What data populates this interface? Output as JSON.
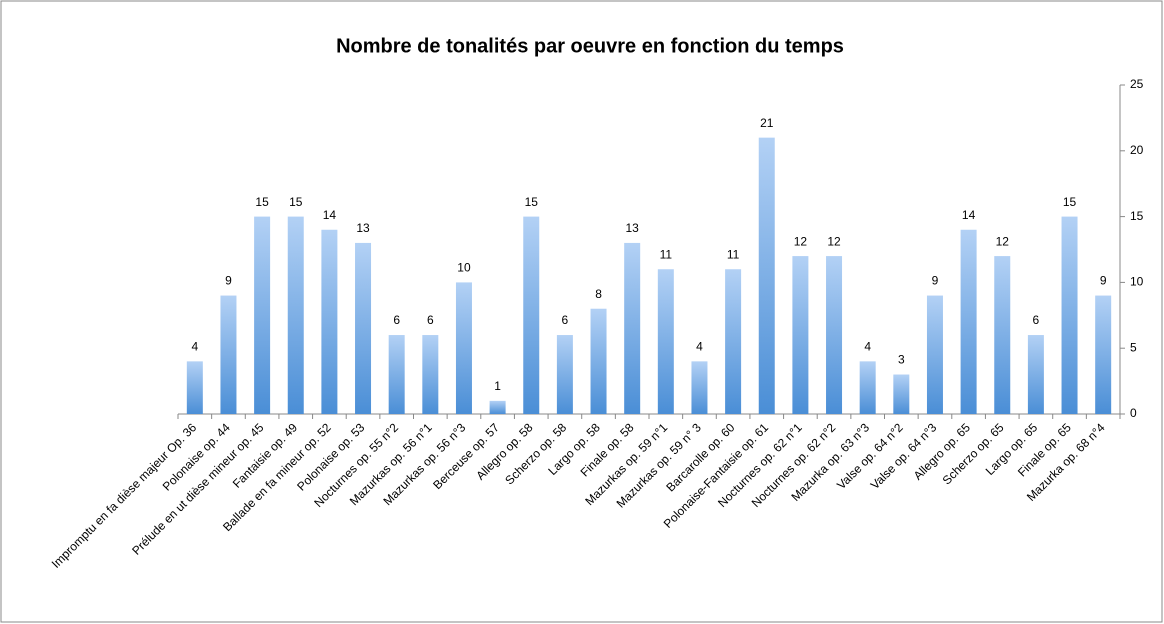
{
  "chart_data": {
    "type": "bar",
    "title": "Nombre de tonalités par oeuvre en fonction du temps",
    "categories": [
      "Impromptu en fa dièse majeur Op. 36",
      "Polonaise op. 44",
      "Prélude en ut dièse mineur op. 45",
      "Fantaisie op. 49",
      "Ballade en fa mineur op. 52",
      "Polonaise op. 53",
      "Nocturnes op. 55 n°2",
      "Mazurkas op. 56 n°1",
      "Mazurkas op. 56 n°3",
      "Berceuse op. 57",
      "Allegro op. 58",
      "Scherzo op. 58",
      "Largo op. 58",
      "Finale op. 58",
      "Mazurkas op. 59 n°1",
      "Mazurkas op. 59 n° 3",
      "Barcarolle op. 60",
      "Polonaise-Fantaisie op. 61",
      "Nocturnes op. 62 n°1",
      "Nocturnes op. 62 n°2",
      "Mazurka op. 63 n°3",
      "Valse op. 64 n°2",
      "Valse op. 64 n°3",
      "Allegro op. 65",
      "Scherzo op. 65",
      "Largo op. 65",
      "Finale op. 65",
      "Mazurka op. 68 n°4"
    ],
    "values": [
      4,
      9,
      15,
      15,
      14,
      13,
      6,
      6,
      10,
      1,
      15,
      6,
      8,
      13,
      11,
      4,
      11,
      21,
      12,
      12,
      4,
      3,
      9,
      14,
      12,
      6,
      15,
      9
    ],
    "color": "#4a8ed6",
    "ylim": [
      0,
      25
    ],
    "yticks": [
      0,
      5,
      10,
      15,
      20,
      25
    ],
    "yaxis_position": "right",
    "grid": false
  }
}
